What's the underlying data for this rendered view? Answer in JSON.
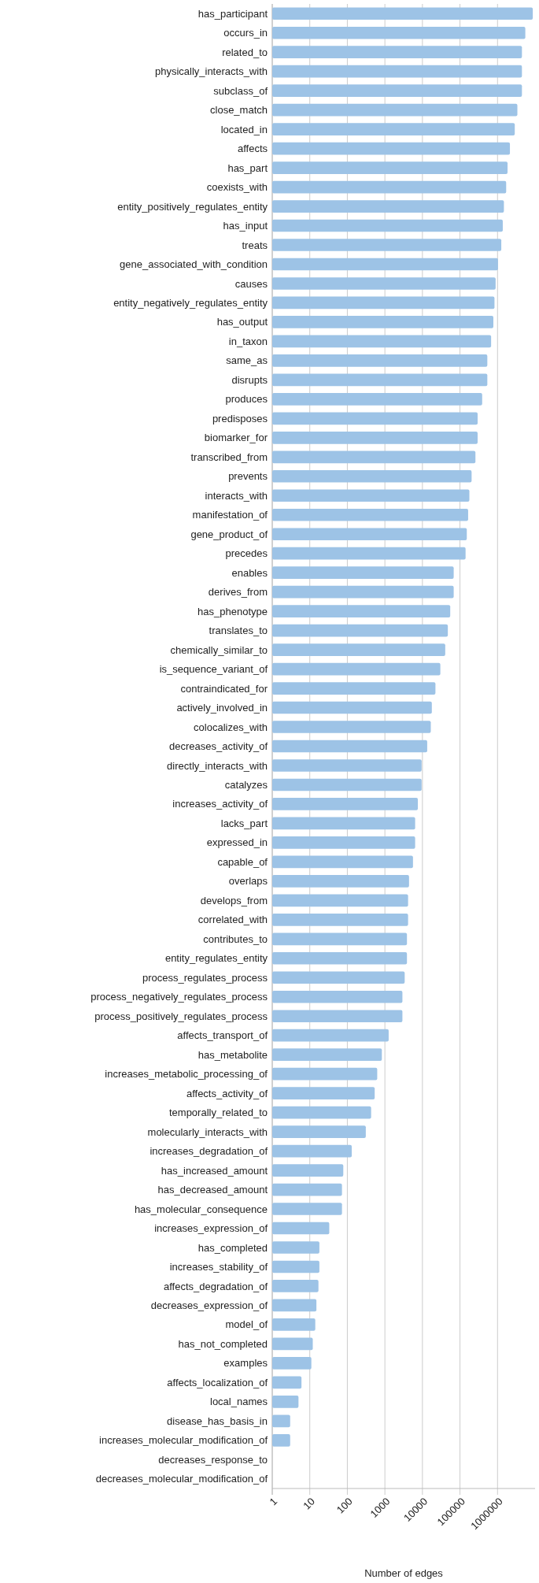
{
  "chart_data": {
    "type": "bar",
    "orientation": "horizontal",
    "log": "x",
    "xlabel": "Number of edges",
    "color": "#9dc3e6",
    "grid": "x",
    "categories": [
      "has_participant",
      "occurs_in",
      "related_to",
      "physically_interacts_with",
      "subclass_of",
      "close_match",
      "located_in",
      "affects",
      "has_part",
      "coexists_with",
      "entity_positively_regulates_entity",
      "has_input",
      "treats",
      "gene_associated_with_condition",
      "causes",
      "entity_negatively_regulates_entity",
      "has_output",
      "in_taxon",
      "same_as",
      "disrupts",
      "produces",
      "predisposes",
      "biomarker_for",
      "transcribed_from",
      "prevents",
      "interacts_with",
      "manifestation_of",
      "gene_product_of",
      "precedes",
      "enables",
      "derives_from",
      "has_phenotype",
      "translates_to",
      "chemically_similar_to",
      "is_sequence_variant_of",
      "contraindicated_for",
      "actively_involved_in",
      "colocalizes_with",
      "decreases_activity_of",
      "directly_interacts_with",
      "catalyzes",
      "increases_activity_of",
      "lacks_part",
      "expressed_in",
      "capable_of",
      "overlaps",
      "develops_from",
      "correlated_with",
      "contributes_to",
      "entity_regulates_entity",
      "process_regulates_process",
      "process_negatively_regulates_process",
      "process_positively_regulates_process",
      "affects_transport_of",
      "has_metabolite",
      "increases_metabolic_processing_of",
      "affects_activity_of",
      "temporally_related_to",
      "molecularly_interacts_with",
      "increases_degradation_of",
      "has_increased_amount",
      "has_decreased_amount",
      "has_molecular_consequence",
      "increases_expression_of",
      "has_completed",
      "increases_stability_of",
      "affects_degradation_of",
      "decreases_expression_of",
      "model_of",
      "has_not_completed",
      "examples",
      "affects_localization_of",
      "local_names",
      "disease_has_basis_in",
      "increases_molecular_modification_of",
      "decreases_response_to",
      "decreases_molecular_modification_of"
    ],
    "values": [
      8700000,
      5500000,
      4470000,
      4470000,
      4470000,
      3380000,
      2880000,
      2140000,
      1850000,
      1700000,
      1480000,
      1380000,
      1260000,
      1030000,
      890000,
      830000,
      775000,
      675000,
      535000,
      535000,
      390000,
      295000,
      295000,
      258000,
      204000,
      178000,
      165000,
      152000,
      141000,
      68000,
      68000,
      55000,
      47500,
      40500,
      30000,
      22200,
      17800,
      16700,
      13400,
      9500,
      9500,
      7550,
      6400,
      6400,
      5600,
      4400,
      4150,
      4150,
      3870,
      3870,
      3370,
      2930,
      2930,
      1260,
      830,
      625,
      535,
      430,
      310,
      131,
      78,
      72,
      72,
      33,
      18,
      18,
      17,
      15,
      14,
      12,
      11,
      6,
      5,
      3,
      3,
      1,
      1
    ],
    "xlim": [
      1,
      10000000
    ],
    "xticks": [
      1,
      10,
      100,
      1000,
      10000,
      100000,
      1000000
    ]
  }
}
